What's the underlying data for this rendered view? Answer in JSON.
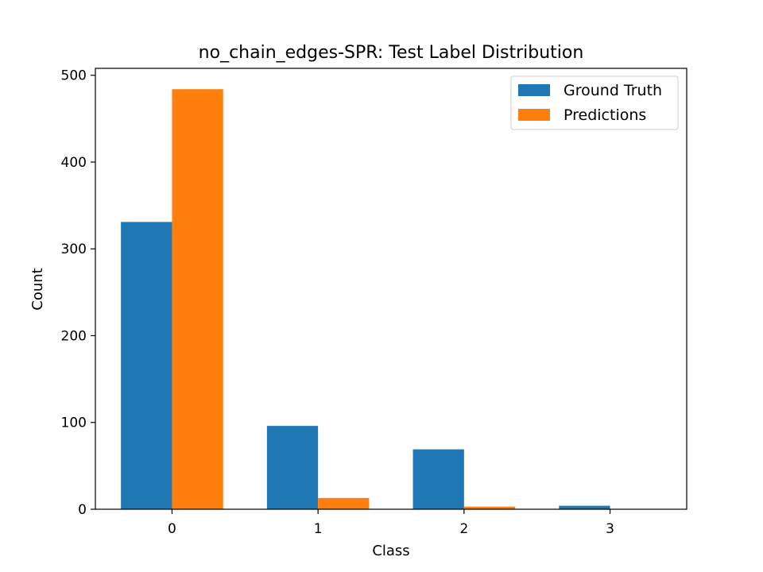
{
  "chart_data": {
    "type": "bar",
    "title": "no_chain_edges-SPR: Test Label Distribution",
    "xlabel": "Class",
    "ylabel": "Count",
    "categories": [
      "0",
      "1",
      "2",
      "3"
    ],
    "series": [
      {
        "name": "Ground Truth",
        "color": "#1f77b4",
        "values": [
          331,
          96,
          69,
          4
        ]
      },
      {
        "name": "Predictions",
        "color": "#ff7f0e",
        "values": [
          484,
          13,
          3,
          0
        ]
      }
    ],
    "ylim": [
      0,
      508
    ],
    "yticks": [
      0,
      100,
      200,
      300,
      400,
      500
    ],
    "grid": false,
    "legend_position": "top-right"
  }
}
